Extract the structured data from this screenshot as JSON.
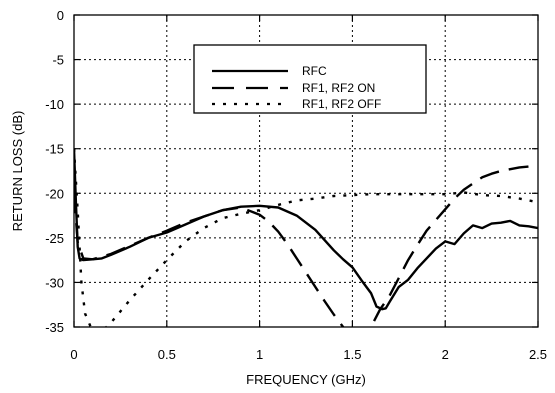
{
  "chart_data": {
    "type": "line",
    "title": "",
    "xlabel": "FREQUENCY (GHz)",
    "ylabel": "RETURN LOSS (dB)",
    "xlim": [
      0,
      2.5
    ],
    "ylim": [
      -35,
      0
    ],
    "xticks": [
      0,
      0.5,
      1,
      1.5,
      2,
      2.5
    ],
    "xtick_labels": [
      "0",
      "0.5",
      "1",
      "1.5",
      "2",
      "2.5"
    ],
    "yticks": [
      0,
      -5,
      -10,
      -15,
      -20,
      -25,
      -30,
      -35
    ],
    "ytick_labels": [
      "0",
      "-5",
      "-10",
      "-15",
      "-20",
      "-25",
      "-30",
      "-35"
    ],
    "grid": true,
    "grid_style": "dotted",
    "legend": {
      "position": "top-center",
      "boxed": true
    },
    "series": [
      {
        "name": "RFC",
        "style": "solid",
        "x": [
          0,
          0.01,
          0.02,
          0.03,
          0.05,
          0.1,
          0.15,
          0.2,
          0.3,
          0.4,
          0.5,
          0.6,
          0.7,
          0.8,
          0.9,
          1.0,
          1.1,
          1.2,
          1.3,
          1.4,
          1.45,
          1.5,
          1.55,
          1.6,
          1.63,
          1.66,
          1.68,
          1.7,
          1.75,
          1.8,
          1.85,
          1.9,
          1.95,
          2.0,
          2.05,
          2.1,
          2.15,
          2.2,
          2.25,
          2.3,
          2.35,
          2.4,
          2.45,
          2.5
        ],
        "y": [
          -15,
          -21,
          -26,
          -27.3,
          -27.5,
          -27.4,
          -27.3,
          -26.9,
          -26,
          -25,
          -24.4,
          -23.5,
          -22.6,
          -21.9,
          -21.5,
          -21.4,
          -21.6,
          -22.5,
          -24.1,
          -26.4,
          -27.4,
          -28.3,
          -29.8,
          -31.2,
          -32.7,
          -33,
          -32.9,
          -32.2,
          -30.5,
          -29.7,
          -28.4,
          -27.3,
          -26.2,
          -25.4,
          -25.7,
          -24.5,
          -23.6,
          -23.9,
          -23.4,
          -23.3,
          -23.1,
          -23.6,
          -23.7,
          -23.9
        ]
      },
      {
        "name": "RF1, RF2 ON",
        "style": "dashed",
        "x": [
          0,
          0.02,
          0.05,
          0.1,
          0.2,
          0.3,
          0.4,
          0.5,
          0.6,
          0.7,
          0.8,
          0.9,
          1.0,
          1.05,
          1.1,
          1.15,
          1.2,
          1.25,
          1.3,
          1.35,
          1.4,
          1.45,
          1.48,
          1.5,
          1.55,
          1.6,
          1.65,
          1.7,
          1.75,
          1.8,
          1.85,
          1.9,
          1.95,
          2.0,
          2.05,
          2.1,
          2.15,
          2.2,
          2.25,
          2.3,
          2.35,
          2.4,
          2.45
        ],
        "y": [
          -20,
          -25.5,
          -27.3,
          -27.4,
          -26.8,
          -25.9,
          -25,
          -24.2,
          -23.3,
          -22.6,
          -21.9,
          -21.6,
          -22.4,
          -23.2,
          -24.3,
          -25.7,
          -27.3,
          -28.9,
          -30.5,
          -32.1,
          -33.6,
          -35,
          -36,
          -37,
          -37,
          -35,
          -33,
          -31.5,
          -29.5,
          -27.5,
          -25.8,
          -24.2,
          -23,
          -21.8,
          -20.6,
          -19.6,
          -18.9,
          -18.2,
          -17.8,
          -17.5,
          -17.3,
          -17.1,
          -17
        ]
      },
      {
        "name": "RF1, RF2 OFF",
        "style": "dotted",
        "x": [
          0,
          0.02,
          0.04,
          0.06,
          0.1,
          0.15,
          0.2,
          0.3,
          0.4,
          0.5,
          0.6,
          0.7,
          0.8,
          0.9,
          1.0,
          1.1,
          1.2,
          1.3,
          1.4,
          1.5,
          1.6,
          1.7,
          1.8,
          1.9,
          2.0,
          2.1,
          2.2,
          2.3,
          2.4,
          2.5
        ],
        "y": [
          -15,
          -22,
          -30,
          -33.5,
          -35.5,
          -35.5,
          -34.5,
          -32,
          -29.7,
          -27.5,
          -25.4,
          -23.9,
          -22.8,
          -22.3,
          -21.9,
          -21.3,
          -20.8,
          -20.6,
          -20.3,
          -20.2,
          -20.1,
          -20.1,
          -20.1,
          -20.1,
          -20.1,
          -19.9,
          -20.2,
          -20.3,
          -20.6,
          -21
        ]
      }
    ]
  }
}
